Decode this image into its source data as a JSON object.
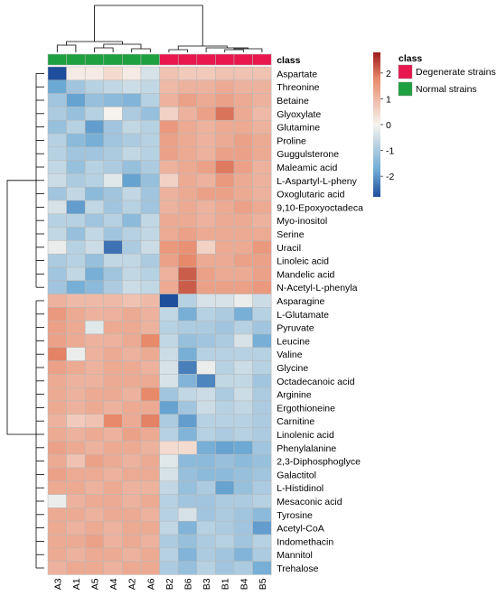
{
  "chart_data": {
    "type": "heatmap",
    "title": "",
    "columns": [
      "A3",
      "A1",
      "A5",
      "A4",
      "A2",
      "A6",
      "B2",
      "B6",
      "B3",
      "B1",
      "B4",
      "B5"
    ],
    "column_class": [
      "Normal strains",
      "Normal strains",
      "Normal strains",
      "Normal strains",
      "Normal strains",
      "Normal strains",
      "Degenerate strains",
      "Degenerate strains",
      "Degenerate strains",
      "Degenerate strains",
      "Degenerate strains",
      "Degenerate strains"
    ],
    "rows": [
      "Aspartate",
      "Threonine",
      "Betaine",
      "Glyoxylate",
      "Glutamine",
      "Proline",
      "Guggulsterone",
      "Maleamic acid",
      "L-Aspartyl-L-pheny",
      "Oxoglutaric acid",
      "9,10-Epoxyoctadeca",
      "Myo-inositol",
      "Serine",
      "Uracil",
      "Linoleic acid",
      "Mandelic acid",
      "N-Acetyl-L-phenyla",
      "Asparagine",
      "L-Glutamate",
      "Pyruvate",
      "Leucine",
      "Valine",
      "Glycine",
      "Octadecanoic acid",
      "Arginine",
      "Ergothioneine",
      "Carnitine",
      "Linolenic acid",
      "Phenylalanine",
      "2,3-Diphosphoglyce",
      "Galactitol",
      "L-Histidinol",
      "Mesaconic acid",
      "Tyrosine",
      "Acetyl-CoA",
      "Indomethacin",
      "Mannitol",
      "Trehalose"
    ],
    "values": [
      [
        -2.8,
        0.1,
        0.1,
        0.3,
        0.1,
        -0.3,
        0.6,
        0.5,
        0.5,
        0.6,
        0.6,
        0.6
      ],
      [
        -1.3,
        -0.8,
        -0.6,
        -0.5,
        -0.4,
        -0.5,
        0.7,
        0.8,
        0.8,
        0.9,
        0.8,
        0.8
      ],
      [
        -0.8,
        -1.4,
        -0.9,
        -1.0,
        -1.1,
        -0.6,
        0.8,
        1.0,
        0.9,
        1.0,
        0.9,
        0.8
      ],
      [
        -0.7,
        -0.9,
        -0.6,
        0.0,
        -0.7,
        -0.9,
        0.4,
        0.8,
        1.0,
        1.6,
        0.9,
        0.7
      ],
      [
        -0.9,
        -0.6,
        -1.5,
        -0.8,
        -0.5,
        -0.6,
        1.1,
        0.9,
        0.8,
        0.9,
        0.9,
        0.8
      ],
      [
        -0.6,
        -1.0,
        -1.2,
        -0.8,
        -0.7,
        -0.6,
        1.0,
        0.9,
        0.8,
        0.9,
        1.0,
        0.9
      ],
      [
        -0.6,
        -0.8,
        -0.8,
        -0.7,
        -0.5,
        -0.6,
        1.0,
        0.9,
        0.8,
        1.0,
        1.0,
        0.9
      ],
      [
        -0.5,
        -0.9,
        -0.6,
        -0.7,
        -0.9,
        -0.7,
        0.8,
        0.9,
        1.0,
        1.5,
        1.0,
        0.8
      ],
      [
        -0.4,
        -0.7,
        -0.6,
        -0.2,
        -1.4,
        -0.9,
        0.4,
        0.9,
        0.8,
        1.1,
        0.9,
        0.8
      ],
      [
        -0.8,
        -0.5,
        -1.0,
        -0.8,
        -0.5,
        -0.8,
        0.8,
        0.9,
        1.0,
        1.0,
        0.9,
        0.8
      ],
      [
        -0.3,
        -1.5,
        -0.5,
        -0.8,
        -0.6,
        -0.8,
        0.8,
        0.9,
        0.8,
        0.9,
        1.0,
        0.9
      ],
      [
        -0.6,
        -0.6,
        -0.8,
        -0.6,
        -1.0,
        -0.5,
        0.9,
        0.9,
        0.8,
        0.9,
        0.9,
        0.8
      ],
      [
        -0.5,
        -0.9,
        -0.5,
        -0.8,
        -0.6,
        -0.5,
        0.9,
        1.0,
        0.9,
        0.9,
        0.9,
        0.9
      ],
      [
        -0.1,
        -0.6,
        -0.4,
        -2.2,
        -0.7,
        -0.4,
        1.1,
        1.2,
        0.4,
        0.9,
        0.9,
        1.1
      ],
      [
        -0.7,
        -0.6,
        -0.9,
        -0.5,
        -0.5,
        -0.7,
        1.0,
        1.3,
        0.9,
        0.9,
        1.0,
        1.0
      ],
      [
        -0.8,
        -0.5,
        -1.2,
        -0.8,
        -0.5,
        -0.6,
        0.8,
        1.9,
        1.0,
        0.9,
        0.9,
        1.0
      ],
      [
        -0.8,
        -1.2,
        -1.0,
        -0.7,
        -0.4,
        -0.5,
        0.9,
        1.9,
        1.0,
        1.0,
        1.0,
        1.1
      ],
      [
        0.8,
        0.7,
        0.7,
        0.7,
        0.6,
        0.7,
        -2.8,
        -0.6,
        -0.3,
        -0.3,
        -0.1,
        -0.4
      ],
      [
        1.1,
        0.9,
        0.8,
        0.8,
        0.9,
        0.8,
        -0.5,
        -1.2,
        -0.6,
        -0.7,
        -1.2,
        -0.6
      ],
      [
        1.0,
        0.9,
        -0.2,
        0.9,
        0.9,
        0.8,
        -0.6,
        -0.7,
        -0.7,
        -0.8,
        -0.6,
        -0.8
      ],
      [
        1.0,
        0.9,
        0.8,
        0.8,
        0.9,
        1.3,
        -0.5,
        -0.9,
        -0.8,
        -0.7,
        -0.3,
        -1.2
      ],
      [
        1.4,
        -0.1,
        0.8,
        0.9,
        0.8,
        0.9,
        -0.4,
        -1.2,
        -0.6,
        -0.6,
        -0.6,
        -0.6
      ],
      [
        1.0,
        0.9,
        0.8,
        0.9,
        0.9,
        0.8,
        -0.3,
        -2.0,
        -0.1,
        -0.6,
        -0.4,
        -0.6
      ],
      [
        0.9,
        0.8,
        0.8,
        0.9,
        0.9,
        0.9,
        -0.3,
        -1.1,
        -1.9,
        -0.5,
        -0.5,
        -0.8
      ],
      [
        0.9,
        0.8,
        0.9,
        0.9,
        0.8,
        1.3,
        -0.8,
        -0.5,
        -0.4,
        -0.7,
        -0.4,
        -0.7
      ],
      [
        0.9,
        0.8,
        0.9,
        0.8,
        0.9,
        0.9,
        -1.4,
        -0.8,
        -0.4,
        -0.6,
        -0.5,
        -0.7
      ],
      [
        0.8,
        0.5,
        0.6,
        1.3,
        0.9,
        1.4,
        -0.7,
        -1.5,
        -0.6,
        -0.6,
        -0.6,
        -0.7
      ],
      [
        0.9,
        0.8,
        0.9,
        0.8,
        1.0,
        0.9,
        -0.6,
        -1.1,
        -0.6,
        -0.7,
        -0.6,
        -0.7
      ],
      [
        1.0,
        0.9,
        0.8,
        0.9,
        0.9,
        0.8,
        0.3,
        0.3,
        -1.2,
        -1.4,
        -1.3,
        -0.8
      ],
      [
        0.9,
        0.6,
        1.0,
        0.9,
        0.8,
        0.9,
        -0.2,
        -1.0,
        -1.0,
        -0.9,
        -1.0,
        -0.9
      ],
      [
        1.0,
        0.9,
        0.9,
        0.8,
        0.9,
        0.9,
        -0.3,
        -0.9,
        -1.0,
        -1.0,
        -0.9,
        -0.8
      ],
      [
        0.9,
        0.9,
        0.8,
        0.9,
        0.8,
        0.8,
        -0.5,
        -0.9,
        -0.7,
        -1.4,
        -0.9,
        -0.7
      ],
      [
        -0.1,
        0.8,
        0.9,
        0.9,
        0.8,
        0.9,
        -0.6,
        -0.8,
        -0.8,
        -0.7,
        -0.7,
        -0.6
      ],
      [
        0.9,
        0.9,
        0.8,
        0.9,
        0.9,
        0.8,
        -0.6,
        -0.3,
        -0.8,
        -0.7,
        -0.8,
        -1.0
      ],
      [
        0.9,
        0.8,
        0.9,
        0.8,
        0.9,
        0.9,
        -0.5,
        -1.1,
        -0.6,
        -0.7,
        -0.8,
        -1.5
      ],
      [
        0.9,
        0.9,
        1.0,
        0.8,
        0.9,
        0.8,
        -0.7,
        -0.9,
        -0.7,
        -0.6,
        -0.8,
        -0.6
      ],
      [
        0.9,
        0.8,
        0.9,
        0.9,
        0.8,
        0.9,
        -0.6,
        -1.1,
        -0.7,
        -0.8,
        -1.1,
        -0.7
      ],
      [
        0.8,
        0.9,
        0.9,
        0.8,
        0.9,
        0.9,
        -0.7,
        -0.9,
        -0.6,
        -0.8,
        -0.7,
        -1.2
      ]
    ],
    "color_scale": {
      "min": -2.8,
      "max": 2.8,
      "ticks": [
        2,
        1,
        0,
        -1,
        -2
      ]
    },
    "annotation_header": "class",
    "legend": {
      "title": "class",
      "position": "right",
      "items": [
        {
          "label": "Degenerate strains",
          "color": "#e8174d"
        },
        {
          "label": "Normal strains",
          "color": "#1fa040"
        }
      ]
    },
    "dendrogram": {
      "columns": true,
      "rows": true
    }
  },
  "colors": {
    "low": "#1f4e9c",
    "mid": "#f6f3ee",
    "high": "#9e1b1b",
    "degenerate": "#e8174d",
    "normal": "#1fa040",
    "cell_border": "#b8b8b8",
    "dendrogram": "#000000"
  }
}
